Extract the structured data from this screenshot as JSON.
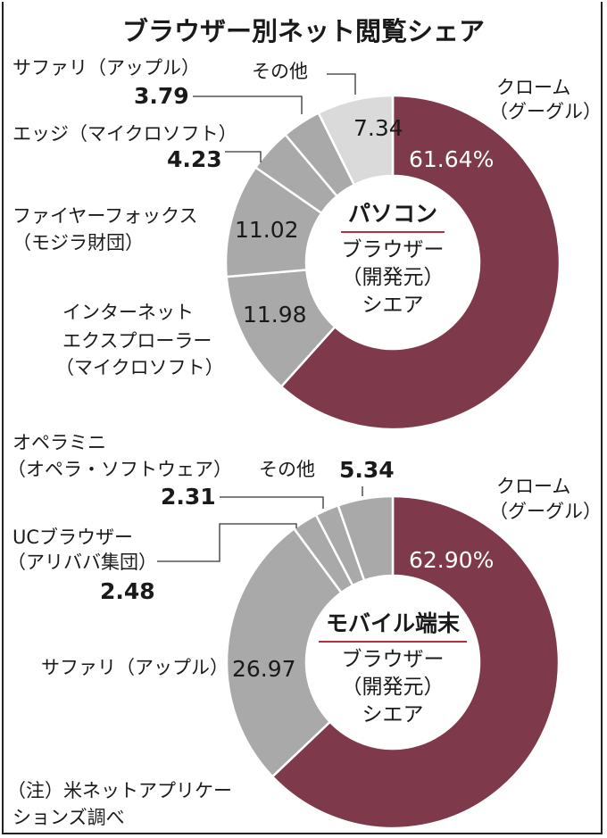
{
  "title": "ブラウザー別ネット閲覧シェア",
  "colors": {
    "chrome": "#7e3a4b",
    "gray": "#a9a9a9",
    "light_gray": "#dadada",
    "accent_line": "#b0303f"
  },
  "chart_data": [
    {
      "type": "donut",
      "center_title": "パソコン",
      "center_subtitle": [
        "ブラウザー",
        "（開発元）",
        "シエア"
      ],
      "unit": "%",
      "slices": [
        {
          "label": [
            "クローム",
            "（グーグル）"
          ],
          "value": 61.64,
          "color": "#7e3a4b"
        },
        {
          "label": [
            "インターネット",
            "エクスプローラー",
            "（マイクロソフト）"
          ],
          "value": 11.98,
          "color": "#a9a9a9"
        },
        {
          "label": [
            "ファイヤーフォックス",
            "（モジラ財団）"
          ],
          "value": 11.02,
          "color": "#a9a9a9"
        },
        {
          "label": [
            "エッジ（マイクロソフト）"
          ],
          "value": 4.23,
          "color": "#a9a9a9"
        },
        {
          "label": [
            "サファリ（アップル）"
          ],
          "value": 3.79,
          "color": "#a9a9a9"
        },
        {
          "label": [
            "その他"
          ],
          "value": 7.34,
          "color": "#dadada"
        }
      ]
    },
    {
      "type": "donut",
      "center_title": "モバイル端末",
      "center_subtitle": [
        "ブラウザー",
        "（開発元）",
        "シエア"
      ],
      "unit": "%",
      "slices": [
        {
          "label": [
            "クローム",
            "（グーグル）"
          ],
          "value": 62.9,
          "color": "#7e3a4b"
        },
        {
          "label": [
            "サファリ（アップル）"
          ],
          "value": 26.97,
          "color": "#a9a9a9"
        },
        {
          "label": [
            "UCブラウザー",
            "（アリババ集団）"
          ],
          "value": 2.48,
          "color": "#a9a9a9"
        },
        {
          "label": [
            "オペラミニ",
            "（オペラ・ソフトウェア）"
          ],
          "value": 2.31,
          "color": "#a9a9a9"
        },
        {
          "label": [
            "その他"
          ],
          "value": 5.34,
          "color": "#a9a9a9"
        }
      ]
    }
  ],
  "footnote": [
    "（注）米ネットアプリケー",
    "ションズ調べ"
  ]
}
